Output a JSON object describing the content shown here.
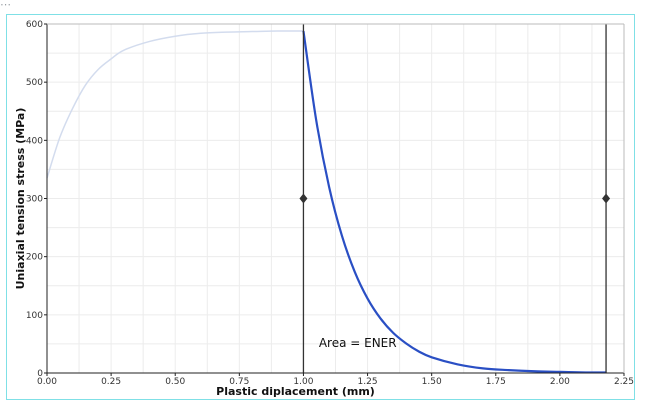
{
  "chart_data": {
    "type": "line",
    "title": "",
    "xlabel": "Plastic diplacement (mm)",
    "ylabel": "Uniaxial tension stress (MPa)",
    "xlim": [
      0,
      2.25
    ],
    "ylim": [
      0,
      600
    ],
    "x_ticks": [
      "0.00",
      "0.25",
      "0.50",
      "0.75",
      "1.00",
      "1.25",
      "1.50",
      "1.75",
      "2.00",
      "2.25"
    ],
    "y_ticks": [
      "0",
      "100",
      "200",
      "300",
      "400",
      "500",
      "600"
    ],
    "grid": true,
    "series": [
      {
        "role": "hardening-background",
        "color": "#d3dcee",
        "x": [
          0.0,
          0.05,
          0.1,
          0.15,
          0.2,
          0.25,
          0.3,
          0.4,
          0.5,
          0.6,
          0.7,
          0.8,
          0.9,
          1.0
        ],
        "y": [
          335,
          405,
          455,
          495,
          522,
          540,
          555,
          570,
          579,
          584,
          586,
          587,
          588,
          588
        ]
      },
      {
        "role": "softening-curve",
        "color": "#2a4fc4",
        "x": [
          1.0,
          1.05,
          1.1,
          1.15,
          1.2,
          1.25,
          1.3,
          1.35,
          1.4,
          1.45,
          1.5,
          1.6,
          1.7,
          1.8,
          1.9,
          2.0,
          2.1,
          2.18
        ],
        "y": [
          588,
          434,
          320,
          236,
          174,
          128,
          94,
          69,
          51,
          37,
          27,
          15,
          8,
          5,
          3,
          2,
          1,
          1
        ]
      }
    ],
    "markers": [
      {
        "x": 1.0,
        "handle_y": 300,
        "color": "#333333"
      },
      {
        "x": 2.18,
        "handle_y": 300,
        "color": "#333333"
      }
    ],
    "annotations": [
      {
        "text": "Area = ENER",
        "x": 1.06,
        "y": 45
      }
    ]
  }
}
